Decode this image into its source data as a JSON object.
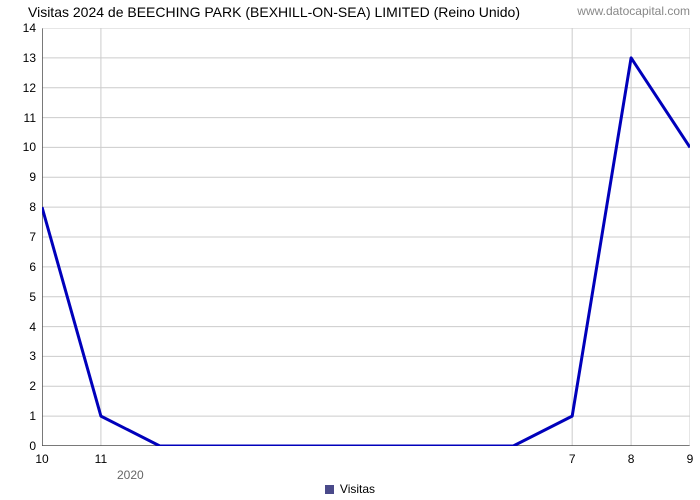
{
  "title": "Visitas 2024 de BEECHING PARK (BEXHILL-ON-SEA) LIMITED (Reino Unido)",
  "watermark": "www.datocapital.com",
  "chart": {
    "type": "line",
    "series_name": "Visitas",
    "xlim": [
      0,
      11
    ],
    "ylim": [
      0,
      14
    ],
    "y_ticks": [
      0,
      1,
      2,
      3,
      4,
      5,
      6,
      7,
      8,
      9,
      10,
      11,
      12,
      13,
      14
    ],
    "x_major_ticks": [
      {
        "x": 0,
        "label": "10"
      },
      {
        "x": 1,
        "label": "11"
      },
      {
        "x": 9,
        "label": "7"
      },
      {
        "x": 10,
        "label": "8"
      },
      {
        "x": 11,
        "label": "9"
      }
    ],
    "x_minor_ticks": [
      2,
      3,
      4,
      5,
      6,
      7,
      8
    ],
    "x_secondary_label": {
      "x": 1.5,
      "text": "2020"
    },
    "data": [
      {
        "x": 0,
        "y": 8
      },
      {
        "x": 1,
        "y": 1
      },
      {
        "x": 2,
        "y": 0
      },
      {
        "x": 3,
        "y": 0
      },
      {
        "x": 4,
        "y": 0
      },
      {
        "x": 5,
        "y": 0
      },
      {
        "x": 6,
        "y": 0
      },
      {
        "x": 7,
        "y": 0
      },
      {
        "x": 8,
        "y": 0
      },
      {
        "x": 9,
        "y": 1
      },
      {
        "x": 10,
        "y": 13
      },
      {
        "x": 11,
        "y": 10
      }
    ],
    "line_color": "#0000bb",
    "line_width": 3,
    "grid_color": "#cccccc",
    "axis_color": "#4d4d4d",
    "tick_color": "#808080",
    "background_color": "#ffffff",
    "title_fontsize": 14,
    "label_fontsize": 12,
    "legend_marker_color": "#4a4a8a"
  }
}
